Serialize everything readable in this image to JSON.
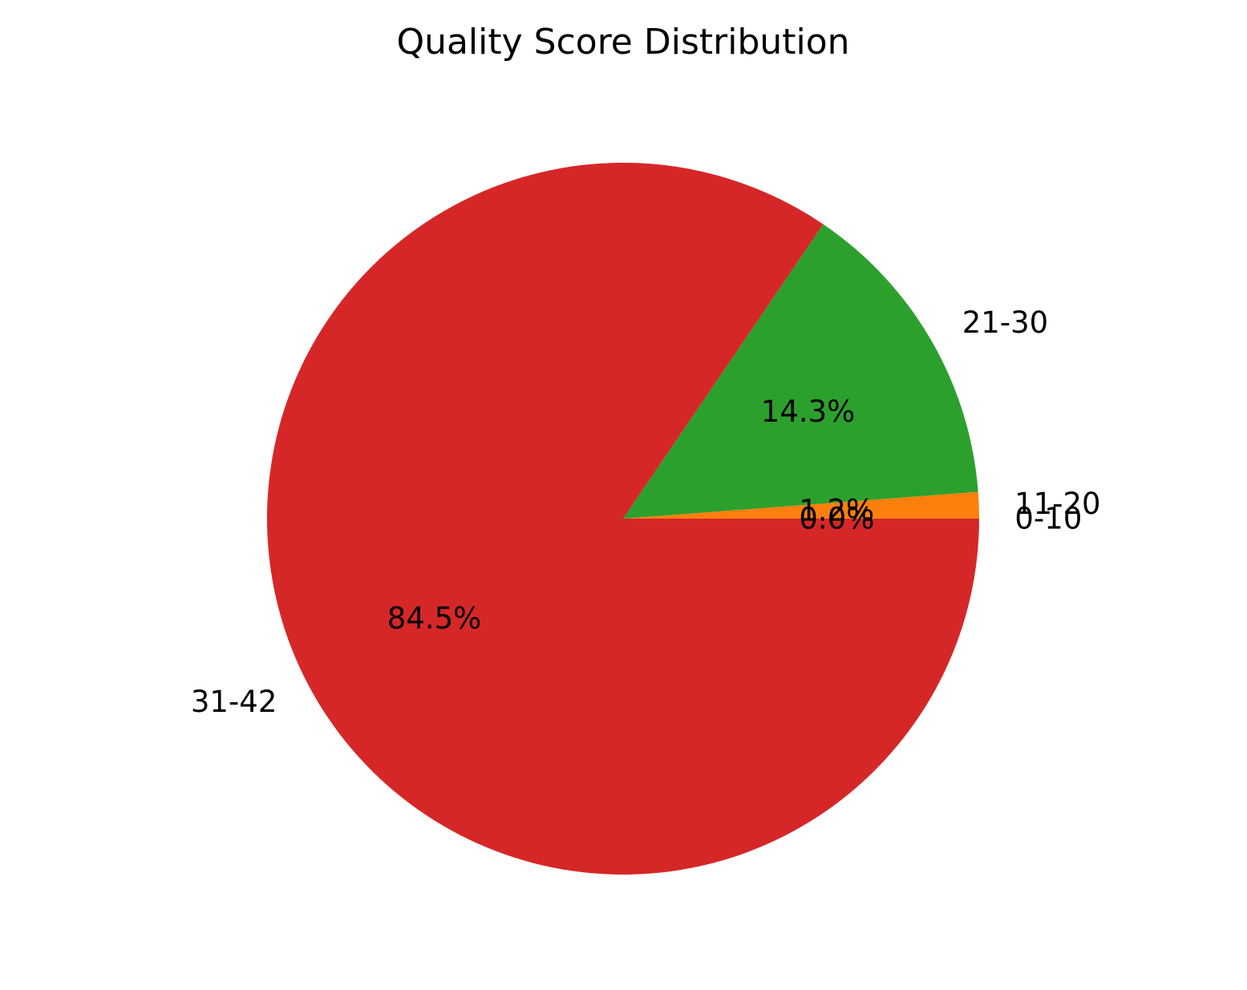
{
  "chart_data": {
    "type": "pie",
    "title": "Quality Score Distribution",
    "categories": [
      "0-10",
      "11-20",
      "21-30",
      "31-42"
    ],
    "values": [
      0.0,
      1.2,
      14.3,
      84.5
    ],
    "percent_labels": [
      "0.0%",
      "1.2%",
      "14.3%",
      "84.5%"
    ],
    "colors": [
      "#1f77b4",
      "#ff7f0e",
      "#2ca02c",
      "#d62728"
    ],
    "start_angle_deg": 0,
    "direction": "counterclockwise",
    "legend": "none"
  }
}
